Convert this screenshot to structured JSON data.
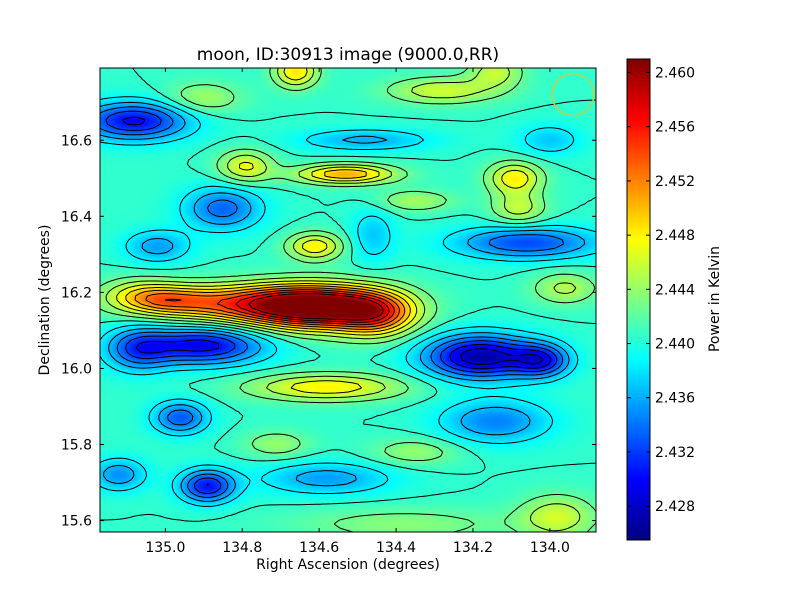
{
  "chart_data": {
    "type": "heatmap",
    "title": "moon, ID:30913 image (9000.0,RR)",
    "xlabel": "Right Ascension (degrees)",
    "ylabel": "Declination (degrees)",
    "xlim": [
      135.17,
      133.88
    ],
    "ylim": [
      15.57,
      16.79
    ],
    "x_ticks": [
      135.0,
      134.8,
      134.6,
      134.4,
      134.2,
      134.0
    ],
    "x_tick_labels": [
      "135.0",
      "134.8",
      "134.6",
      "134.4",
      "134.2",
      "134.0"
    ],
    "y_ticks": [
      15.6,
      15.8,
      16.0,
      16.2,
      16.4,
      16.6
    ],
    "y_tick_labels": [
      "15.6",
      "15.8",
      "16.0",
      "16.2",
      "16.4",
      "16.6"
    ],
    "colorbar": {
      "label": "Power in Kelvin",
      "range": [
        2.4255,
        2.461
      ],
      "ticks": [
        2.428,
        2.432,
        2.436,
        2.44,
        2.444,
        2.448,
        2.452,
        2.456,
        2.46
      ],
      "tick_labels": [
        "2.428",
        "2.432",
        "2.436",
        "2.440",
        "2.444",
        "2.448",
        "2.452",
        "2.456",
        "2.460"
      ],
      "colormap": "jet"
    },
    "background_level": 2.4405,
    "features": [
      {
        "ra": 134.6,
        "dec": 16.16,
        "peak": 2.4595,
        "sx": 0.13,
        "sy": 0.04
      },
      {
        "ra": 134.8,
        "dec": 16.17,
        "peak": 2.4515,
        "sx": 0.18,
        "sy": 0.035
      },
      {
        "ra": 134.45,
        "dec": 16.14,
        "peak": 2.45,
        "sx": 0.07,
        "sy": 0.04
      },
      {
        "ra": 135.0,
        "dec": 16.18,
        "peak": 2.447,
        "sx": 0.08,
        "sy": 0.025
      },
      {
        "ra": 134.53,
        "dec": 16.51,
        "peak": 2.4505,
        "sx": 0.09,
        "sy": 0.018
      },
      {
        "ra": 134.66,
        "dec": 16.78,
        "peak": 2.4485,
        "sx": 0.04,
        "sy": 0.03
      },
      {
        "ra": 134.28,
        "dec": 16.73,
        "peak": 2.446,
        "sx": 0.1,
        "sy": 0.025
      },
      {
        "ra": 134.61,
        "dec": 16.32,
        "peak": 2.448,
        "sx": 0.05,
        "sy": 0.025
      },
      {
        "ra": 134.09,
        "dec": 16.5,
        "peak": 2.448,
        "sx": 0.05,
        "sy": 0.03
      },
      {
        "ra": 134.08,
        "dec": 16.42,
        "peak": 2.4455,
        "sx": 0.05,
        "sy": 0.03
      },
      {
        "ra": 134.79,
        "dec": 16.53,
        "peak": 2.447,
        "sx": 0.05,
        "sy": 0.03
      },
      {
        "ra": 134.58,
        "dec": 15.95,
        "peak": 2.448,
        "sx": 0.14,
        "sy": 0.025
      },
      {
        "ra": 135.07,
        "dec": 16.2,
        "peak": 2.444,
        "sx": 0.07,
        "sy": 0.03
      },
      {
        "ra": 133.96,
        "dec": 16.21,
        "peak": 2.445,
        "sx": 0.06,
        "sy": 0.03
      },
      {
        "ra": 134.35,
        "dec": 16.44,
        "peak": 2.4445,
        "sx": 0.07,
        "sy": 0.02
      },
      {
        "ra": 134.35,
        "dec": 15.78,
        "peak": 2.444,
        "sx": 0.08,
        "sy": 0.025
      },
      {
        "ra": 134.71,
        "dec": 15.8,
        "peak": 2.444,
        "sx": 0.06,
        "sy": 0.025
      },
      {
        "ra": 133.98,
        "dec": 15.61,
        "peak": 2.446,
        "sx": 0.07,
        "sy": 0.04
      },
      {
        "ra": 134.38,
        "dec": 15.59,
        "peak": 2.4435,
        "sx": 0.2,
        "sy": 0.03
      },
      {
        "ra": 134.9,
        "dec": 16.71,
        "peak": 2.4445,
        "sx": 0.07,
        "sy": 0.03
      },
      {
        "ra": 134.14,
        "dec": 16.78,
        "peak": 2.4455,
        "sx": 0.05,
        "sy": 0.03
      },
      {
        "ra": 134.18,
        "dec": 16.03,
        "peak": 2.4268,
        "sx": 0.1,
        "sy": 0.04
      },
      {
        "ra": 134.02,
        "dec": 16.02,
        "peak": 2.432,
        "sx": 0.05,
        "sy": 0.03
      },
      {
        "ra": 134.9,
        "dec": 16.06,
        "peak": 2.4295,
        "sx": 0.11,
        "sy": 0.035
      },
      {
        "ra": 135.07,
        "dec": 16.05,
        "peak": 2.4335,
        "sx": 0.06,
        "sy": 0.04
      },
      {
        "ra": 135.08,
        "dec": 16.65,
        "peak": 2.43,
        "sx": 0.1,
        "sy": 0.035
      },
      {
        "ra": 134.06,
        "dec": 16.33,
        "peak": 2.4325,
        "sx": 0.13,
        "sy": 0.03
      },
      {
        "ra": 134.85,
        "dec": 16.42,
        "peak": 2.4335,
        "sx": 0.07,
        "sy": 0.04
      },
      {
        "ra": 135.02,
        "dec": 16.32,
        "peak": 2.4355,
        "sx": 0.06,
        "sy": 0.03
      },
      {
        "ra": 134.46,
        "dec": 16.35,
        "peak": 2.437,
        "sx": 0.04,
        "sy": 0.05
      },
      {
        "ra": 134.89,
        "dec": 15.69,
        "peak": 2.4305,
        "sx": 0.05,
        "sy": 0.03
      },
      {
        "ra": 134.96,
        "dec": 15.87,
        "peak": 2.433,
        "sx": 0.05,
        "sy": 0.03
      },
      {
        "ra": 134.58,
        "dec": 15.71,
        "peak": 2.4355,
        "sx": 0.12,
        "sy": 0.03
      },
      {
        "ra": 134.14,
        "dec": 15.86,
        "peak": 2.4345,
        "sx": 0.1,
        "sy": 0.04
      },
      {
        "ra": 134.48,
        "dec": 16.6,
        "peak": 2.436,
        "sx": 0.12,
        "sy": 0.02
      },
      {
        "ra": 135.12,
        "dec": 15.72,
        "peak": 2.435,
        "sx": 0.05,
        "sy": 0.03
      },
      {
        "ra": 134.0,
        "dec": 16.6,
        "peak": 2.437,
        "sx": 0.06,
        "sy": 0.03
      }
    ],
    "annotations": [
      {
        "shape": "circle",
        "ra": 133.94,
        "dec": 16.72,
        "radius_deg": 0.055,
        "color": "#b8d24a"
      }
    ]
  },
  "colors": {
    "axes": "#000000",
    "contour": "#000000",
    "background": "#ffffff"
  }
}
